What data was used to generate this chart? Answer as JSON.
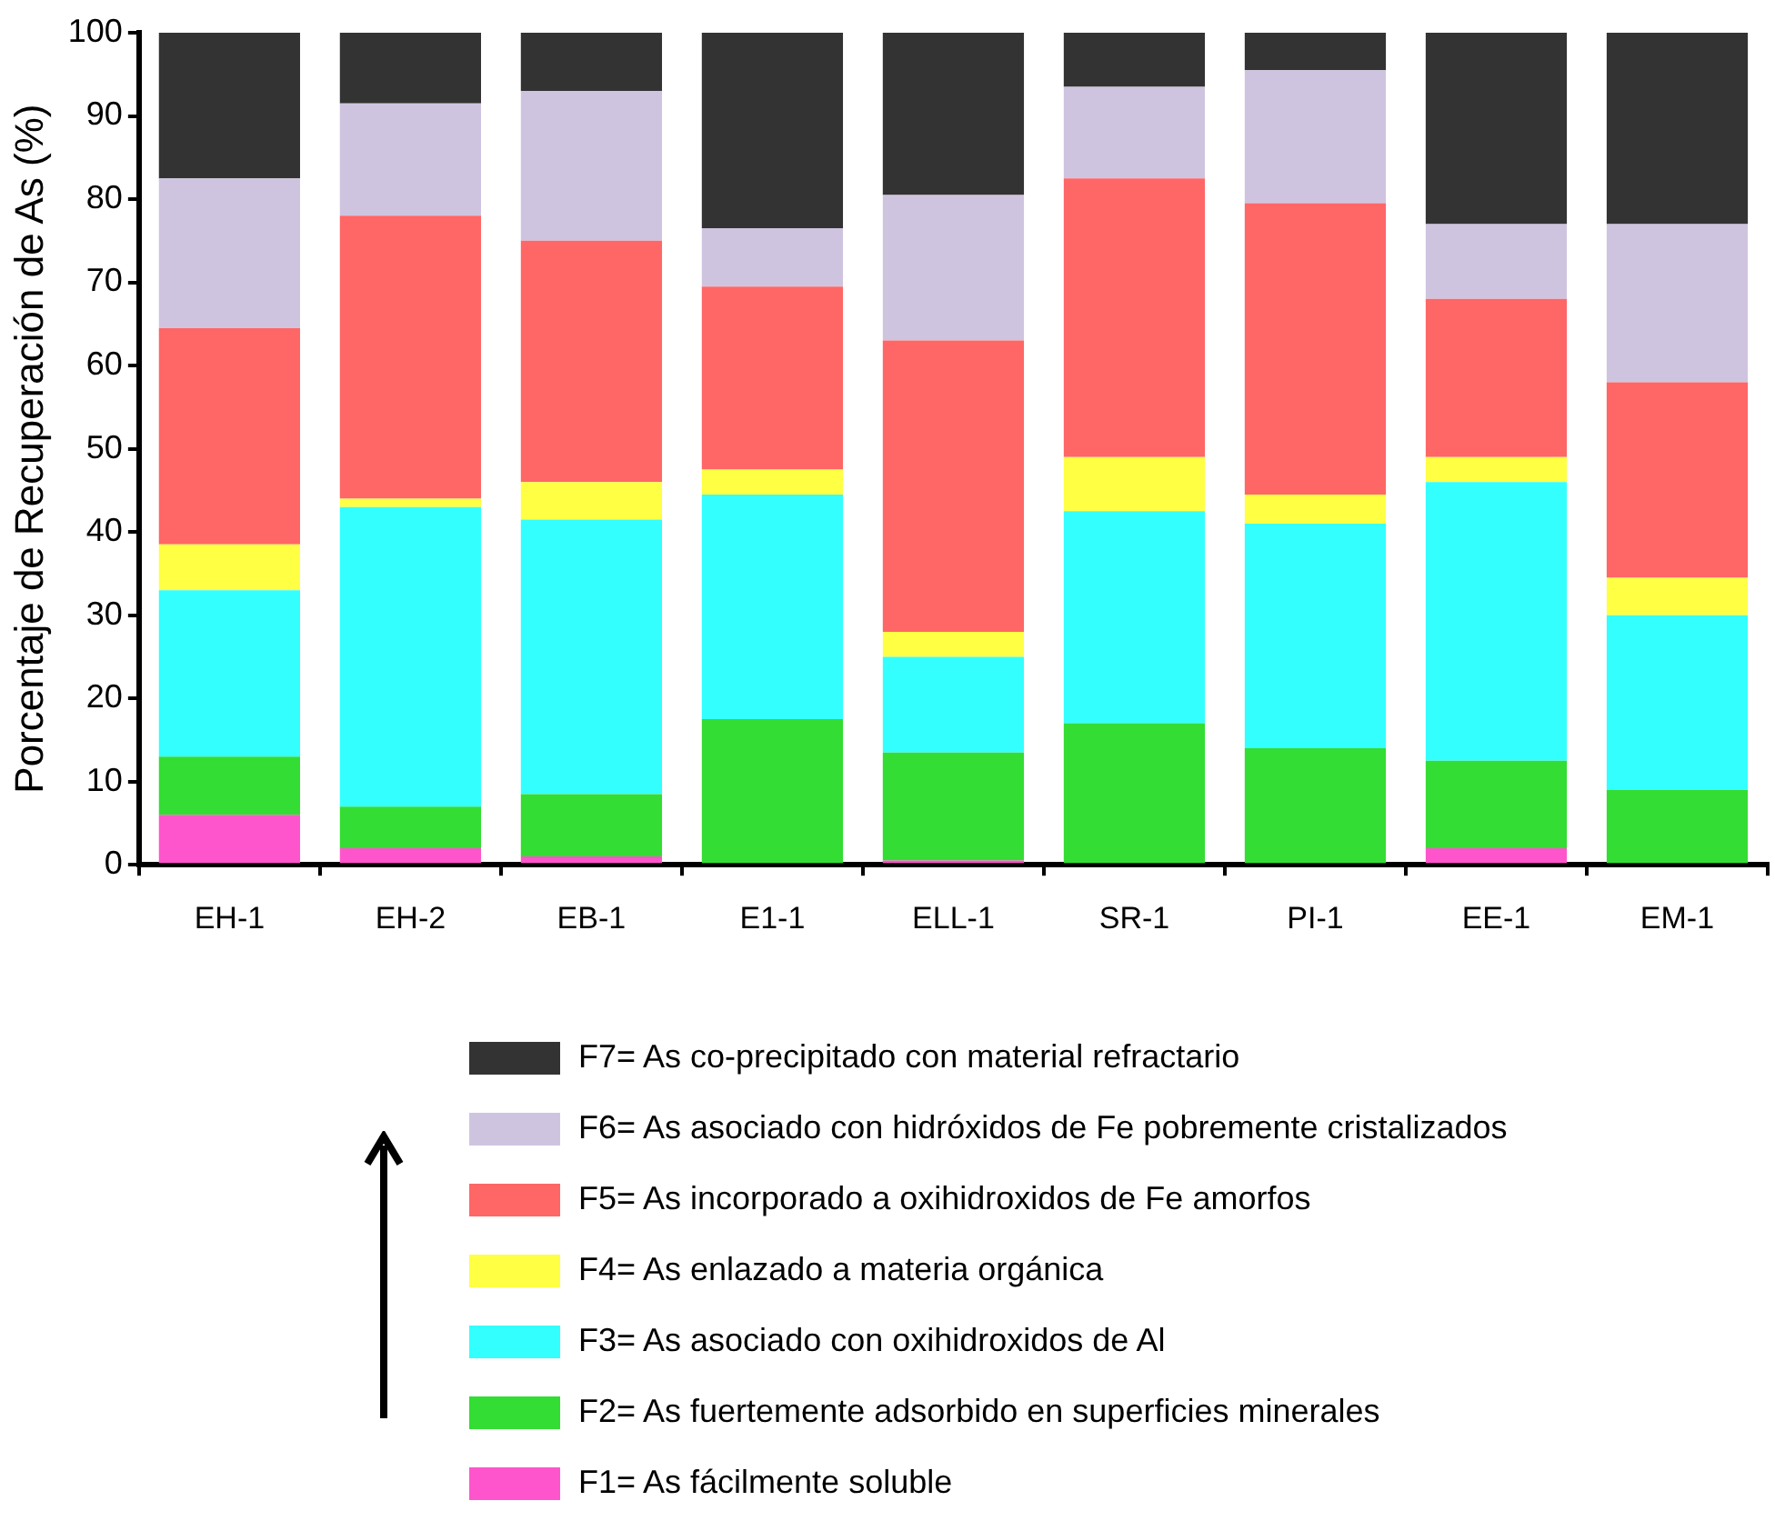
{
  "chart_data": {
    "type": "bar",
    "stacked": true,
    "ylabel": "Porcentaje de Recuperación de As (%)",
    "categories": [
      "EH-1",
      "EH-2",
      "EB-1",
      "E1-1",
      "ELL-1",
      "SR-1",
      "PI-1",
      "EE-1",
      "EM-1"
    ],
    "ylim": [
      0,
      100
    ],
    "yticks": [
      0,
      10,
      20,
      30,
      40,
      50,
      60,
      70,
      80,
      90,
      100
    ],
    "grid": false,
    "legend": "bottom",
    "series": [
      {
        "name": "F1= As fácilmente soluble",
        "color": "#ff55cc",
        "values": [
          6,
          2,
          1,
          0,
          0.5,
          0,
          0,
          2,
          0
        ]
      },
      {
        "name": "F2= As fuertemente adsorbido en superficies minerales",
        "color": "#33dd33",
        "values": [
          7,
          5,
          7.5,
          17.5,
          13,
          17,
          14,
          10.5,
          9
        ]
      },
      {
        "name": "F3= As asociado con oxihidroxidos de Al",
        "color": "#33ffff",
        "values": [
          20,
          36,
          33,
          27,
          11.5,
          25.5,
          27,
          33.5,
          21
        ]
      },
      {
        "name": "F4= As enlazado a materia orgánica",
        "color": "#ffff44",
        "values": [
          5.5,
          1,
          4.5,
          3,
          3,
          6.5,
          3.5,
          3,
          4.5
        ]
      },
      {
        "name": "F5= As incorporado a oxihidroxidos de Fe amorfos",
        "color": "#ff6666",
        "values": [
          26,
          34,
          29,
          22,
          35,
          33.5,
          35,
          19,
          23.5
        ]
      },
      {
        "name": "F6= As asociado con hidróxidos de Fe pobremente cristalizados",
        "color": "#cfc4e0",
        "values": [
          18,
          13.5,
          18,
          7,
          17.5,
          11,
          16,
          9,
          19
        ]
      },
      {
        "name": "F7= As co-precipitado con material refractario",
        "color": "#333333",
        "values": [
          17.5,
          8.5,
          7,
          23.5,
          19.5,
          6.5,
          4.5,
          23,
          23
        ]
      }
    ]
  }
}
